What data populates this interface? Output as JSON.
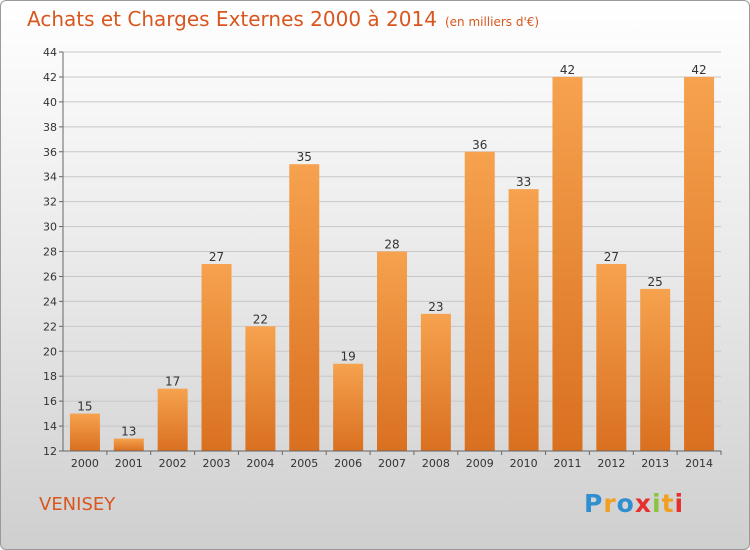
{
  "header": {
    "title": "Achats et Charges Externes 2000 à 2014",
    "unit": "(en milliers d'€)"
  },
  "footer": {
    "place": "VENISEY",
    "logo_text": "Proxiti"
  },
  "colors": {
    "title": "#d9561e",
    "bar_top": "#f6a24e",
    "bar_bottom": "#d97020",
    "grid": "#c8c8c8"
  },
  "chart_data": {
    "type": "bar",
    "title": "Achats et Charges Externes 2000 à 2014",
    "xlabel": "",
    "ylabel": "",
    "categories": [
      "2000",
      "2001",
      "2002",
      "2003",
      "2004",
      "2005",
      "2006",
      "2007",
      "2008",
      "2009",
      "2010",
      "2011",
      "2012",
      "2013",
      "2014"
    ],
    "values": [
      15,
      13,
      17,
      27,
      22,
      35,
      19,
      28,
      23,
      36,
      33,
      42,
      27,
      25,
      42
    ],
    "ylim": [
      12,
      44
    ],
    "yticks": [
      12,
      14,
      16,
      18,
      20,
      22,
      24,
      26,
      28,
      30,
      32,
      34,
      36,
      38,
      40,
      42,
      44
    ],
    "grid": true,
    "data_labels": true
  }
}
